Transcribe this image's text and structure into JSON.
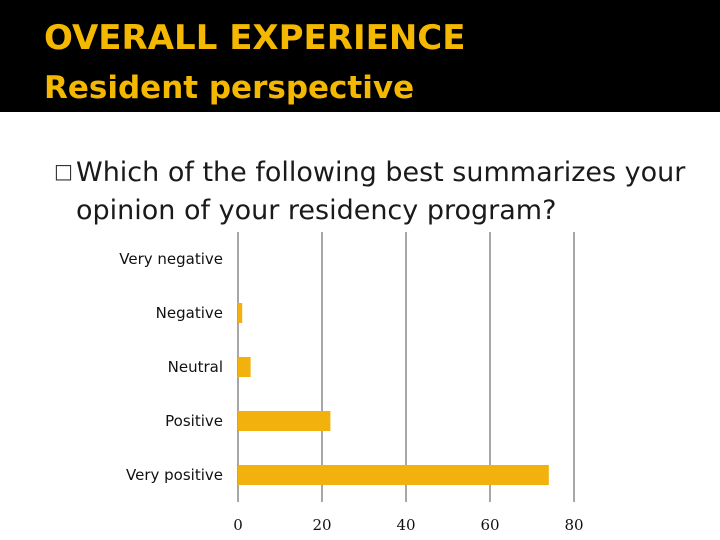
{
  "header": {
    "title": "OVERALL EXPERIENCE",
    "subtitle": "Resident perspective",
    "accent_color": "#f5b800",
    "background_color": "#000000"
  },
  "question": {
    "bullet_icon": "box-bullet-icon",
    "line1": "Which of the following best summarizes your",
    "line2": "opinion of your residency program?"
  },
  "chart_data": {
    "type": "bar",
    "orientation": "horizontal",
    "categories": [
      "Very negative",
      "Negative",
      "Neutral",
      "Positive",
      "Very positive"
    ],
    "values": [
      0,
      1,
      3,
      22,
      74
    ],
    "xlim": [
      0,
      80
    ],
    "x_ticks": [
      "0",
      "20",
      "40",
      "60",
      "80"
    ],
    "grid": true,
    "bar_color": "#f2b10d"
  }
}
